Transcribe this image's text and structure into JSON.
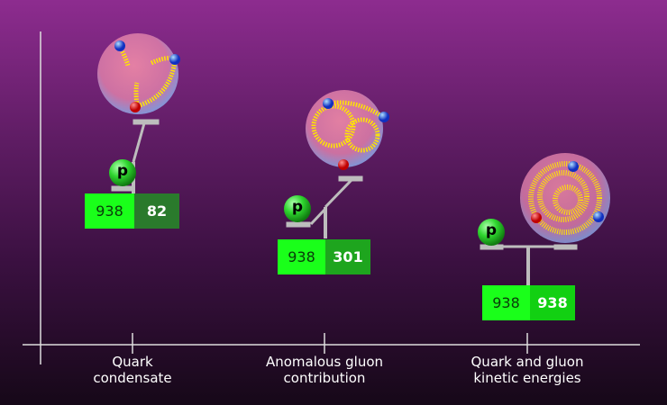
{
  "panels": [
    {
      "label_line1": "Quark",
      "label_line2": "condensate",
      "value_left": "938",
      "value_right": "82",
      "right_color": "#2a7a2c"
    },
    {
      "label_line1": "Anomalous gluon",
      "label_line2": "contribution",
      "value_left": "938",
      "value_right": "301",
      "right_color": "#1ea51e"
    },
    {
      "label_line1": "Quark and gluon",
      "label_line2": "kinetic energies",
      "value_left": "938",
      "value_right": "938",
      "right_color": "#12d012"
    }
  ],
  "proton_label": "p",
  "colors": {
    "left_box": "#1aff1a",
    "proton": "#2fd62f",
    "quark_red": "#e01010",
    "quark_blue": "#1a4ee0",
    "gluon": "#ffe600",
    "balance": "#bdbdbd"
  }
}
